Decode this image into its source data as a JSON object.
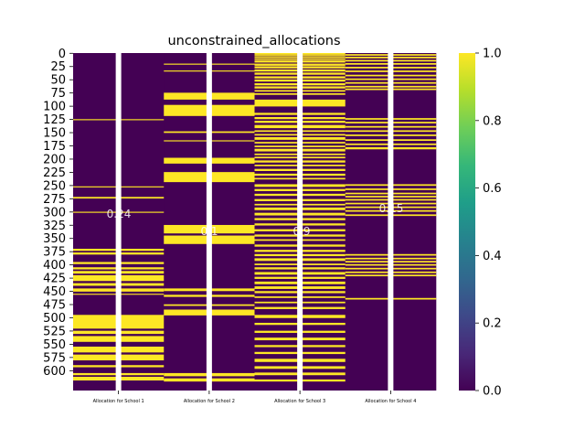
{
  "chart_data": {
    "type": "heatmap",
    "title": "unconstrained_allocations",
    "columns": [
      "Allocation for School 1",
      "Allocation for School 2",
      "Allocation for School 3",
      "Allocation for School 4"
    ],
    "n_rows": 638,
    "ylim": [
      0,
      637
    ],
    "yticks": [
      0,
      25,
      50,
      75,
      100,
      125,
      150,
      175,
      200,
      225,
      250,
      275,
      300,
      325,
      350,
      375,
      400,
      425,
      450,
      475,
      500,
      525,
      550,
      575,
      600
    ],
    "cell_annotations": [
      "0.24",
      "0.1",
      "0.9",
      "0.15"
    ],
    "colorbar": {
      "colormap": "viridis",
      "range": [
        0.0,
        1.0
      ],
      "ticks": [
        "0.0",
        "0.2",
        "0.4",
        "0.6",
        "0.8",
        "1.0"
      ],
      "colors": [
        "#440154",
        "#482878",
        "#3e4989",
        "#31688e",
        "#26828e",
        "#1f9e89",
        "#35b779",
        "#6ece58",
        "#b5de2b",
        "#fde725"
      ]
    },
    "value_colors": {
      "0": "#440154",
      "1": "#fde725"
    },
    "allocated_rows": [
      [
        [
          125,
          126
        ],
        [
          252,
          253
        ],
        [
          272,
          274
        ],
        [
          300,
          301
        ],
        [
          370,
          373
        ],
        [
          377,
          380
        ],
        [
          395,
          398
        ],
        [
          405,
          408
        ],
        [
          412,
          416
        ],
        [
          420,
          430
        ],
        [
          435,
          439
        ],
        [
          445,
          450
        ],
        [
          455,
          456
        ],
        [
          495,
          520
        ],
        [
          525,
          530
        ],
        [
          535,
          545
        ],
        [
          555,
          565
        ],
        [
          570,
          580
        ],
        [
          590,
          593
        ],
        [
          605,
          608
        ],
        [
          612,
          618
        ]
      ],
      [
        [
          20,
          21
        ],
        [
          33,
          34
        ],
        [
          75,
          87
        ],
        [
          98,
          118
        ],
        [
          148,
          150
        ],
        [
          165,
          166
        ],
        [
          198,
          208
        ],
        [
          225,
          243
        ],
        [
          325,
          340
        ],
        [
          345,
          360
        ],
        [
          445,
          449
        ],
        [
          457,
          460
        ],
        [
          475,
          477
        ],
        [
          485,
          495
        ],
        [
          605,
          610
        ],
        [
          615,
          620
        ]
      ],
      [
        [
          0,
          2
        ],
        [
          3,
          4
        ],
        [
          6,
          8
        ],
        [
          10,
          12
        ],
        [
          14,
          17
        ],
        [
          20,
          23
        ],
        [
          25,
          28
        ],
        [
          31,
          34
        ],
        [
          37,
          40
        ],
        [
          44,
          47
        ],
        [
          50,
          53
        ],
        [
          57,
          60
        ],
        [
          63,
          66
        ],
        [
          70,
          72
        ],
        [
          76,
          78
        ],
        [
          88,
          100
        ],
        [
          113,
          116
        ],
        [
          121,
          124
        ],
        [
          128,
          131
        ],
        [
          136,
          141
        ],
        [
          146,
          148
        ],
        [
          153,
          155
        ],
        [
          159,
          163
        ],
        [
          168,
          170
        ],
        [
          175,
          177
        ],
        [
          181,
          185
        ],
        [
          190,
          192
        ],
        [
          196,
          198
        ],
        [
          203,
          206
        ],
        [
          211,
          213
        ],
        [
          219,
          222
        ],
        [
          228,
          231
        ],
        [
          236,
          238
        ],
        [
          248,
          252
        ],
        [
          257,
          260
        ],
        [
          266,
          269
        ],
        [
          276,
          279
        ],
        [
          285,
          287
        ],
        [
          292,
          296
        ],
        [
          302,
          306
        ],
        [
          312,
          315
        ],
        [
          322,
          325
        ],
        [
          333,
          336
        ],
        [
          343,
          346
        ],
        [
          352,
          354
        ],
        [
          362,
          365
        ],
        [
          372,
          375
        ],
        [
          380,
          383
        ],
        [
          388,
          392
        ],
        [
          398,
          400
        ],
        [
          405,
          408
        ],
        [
          414,
          418
        ],
        [
          423,
          426
        ],
        [
          432,
          436
        ],
        [
          441,
          445
        ],
        [
          450,
          453
        ],
        [
          460,
          462
        ],
        [
          470,
          472
        ],
        [
          480,
          483
        ],
        [
          495,
          500
        ],
        [
          510,
          513
        ],
        [
          525,
          528
        ],
        [
          538,
          542
        ],
        [
          552,
          555
        ],
        [
          565,
          568
        ],
        [
          578,
          583
        ],
        [
          592,
          596
        ],
        [
          604,
          608
        ],
        [
          617,
          620
        ]
      ],
      [
        [
          2,
          4
        ],
        [
          7,
          9
        ],
        [
          13,
          15
        ],
        [
          19,
          21
        ],
        [
          26,
          28
        ],
        [
          33,
          35
        ],
        [
          41,
          43
        ],
        [
          48,
          50
        ],
        [
          55,
          57
        ],
        [
          62,
          64
        ],
        [
          67,
          69
        ],
        [
          123,
          125
        ],
        [
          130,
          132
        ],
        [
          138,
          140
        ],
        [
          146,
          148
        ],
        [
          154,
          156
        ],
        [
          163,
          165
        ],
        [
          171,
          173
        ],
        [
          178,
          181
        ],
        [
          248,
          250
        ],
        [
          256,
          258
        ],
        [
          264,
          266
        ],
        [
          270,
          272
        ],
        [
          276,
          278
        ],
        [
          283,
          285
        ],
        [
          290,
          292
        ],
        [
          297,
          299
        ],
        [
          305,
          307
        ],
        [
          380,
          382
        ],
        [
          387,
          389
        ],
        [
          393,
          395
        ],
        [
          399,
          401
        ],
        [
          406,
          408
        ],
        [
          413,
          415
        ],
        [
          419,
          421
        ],
        [
          463,
          465
        ]
      ]
    ]
  }
}
